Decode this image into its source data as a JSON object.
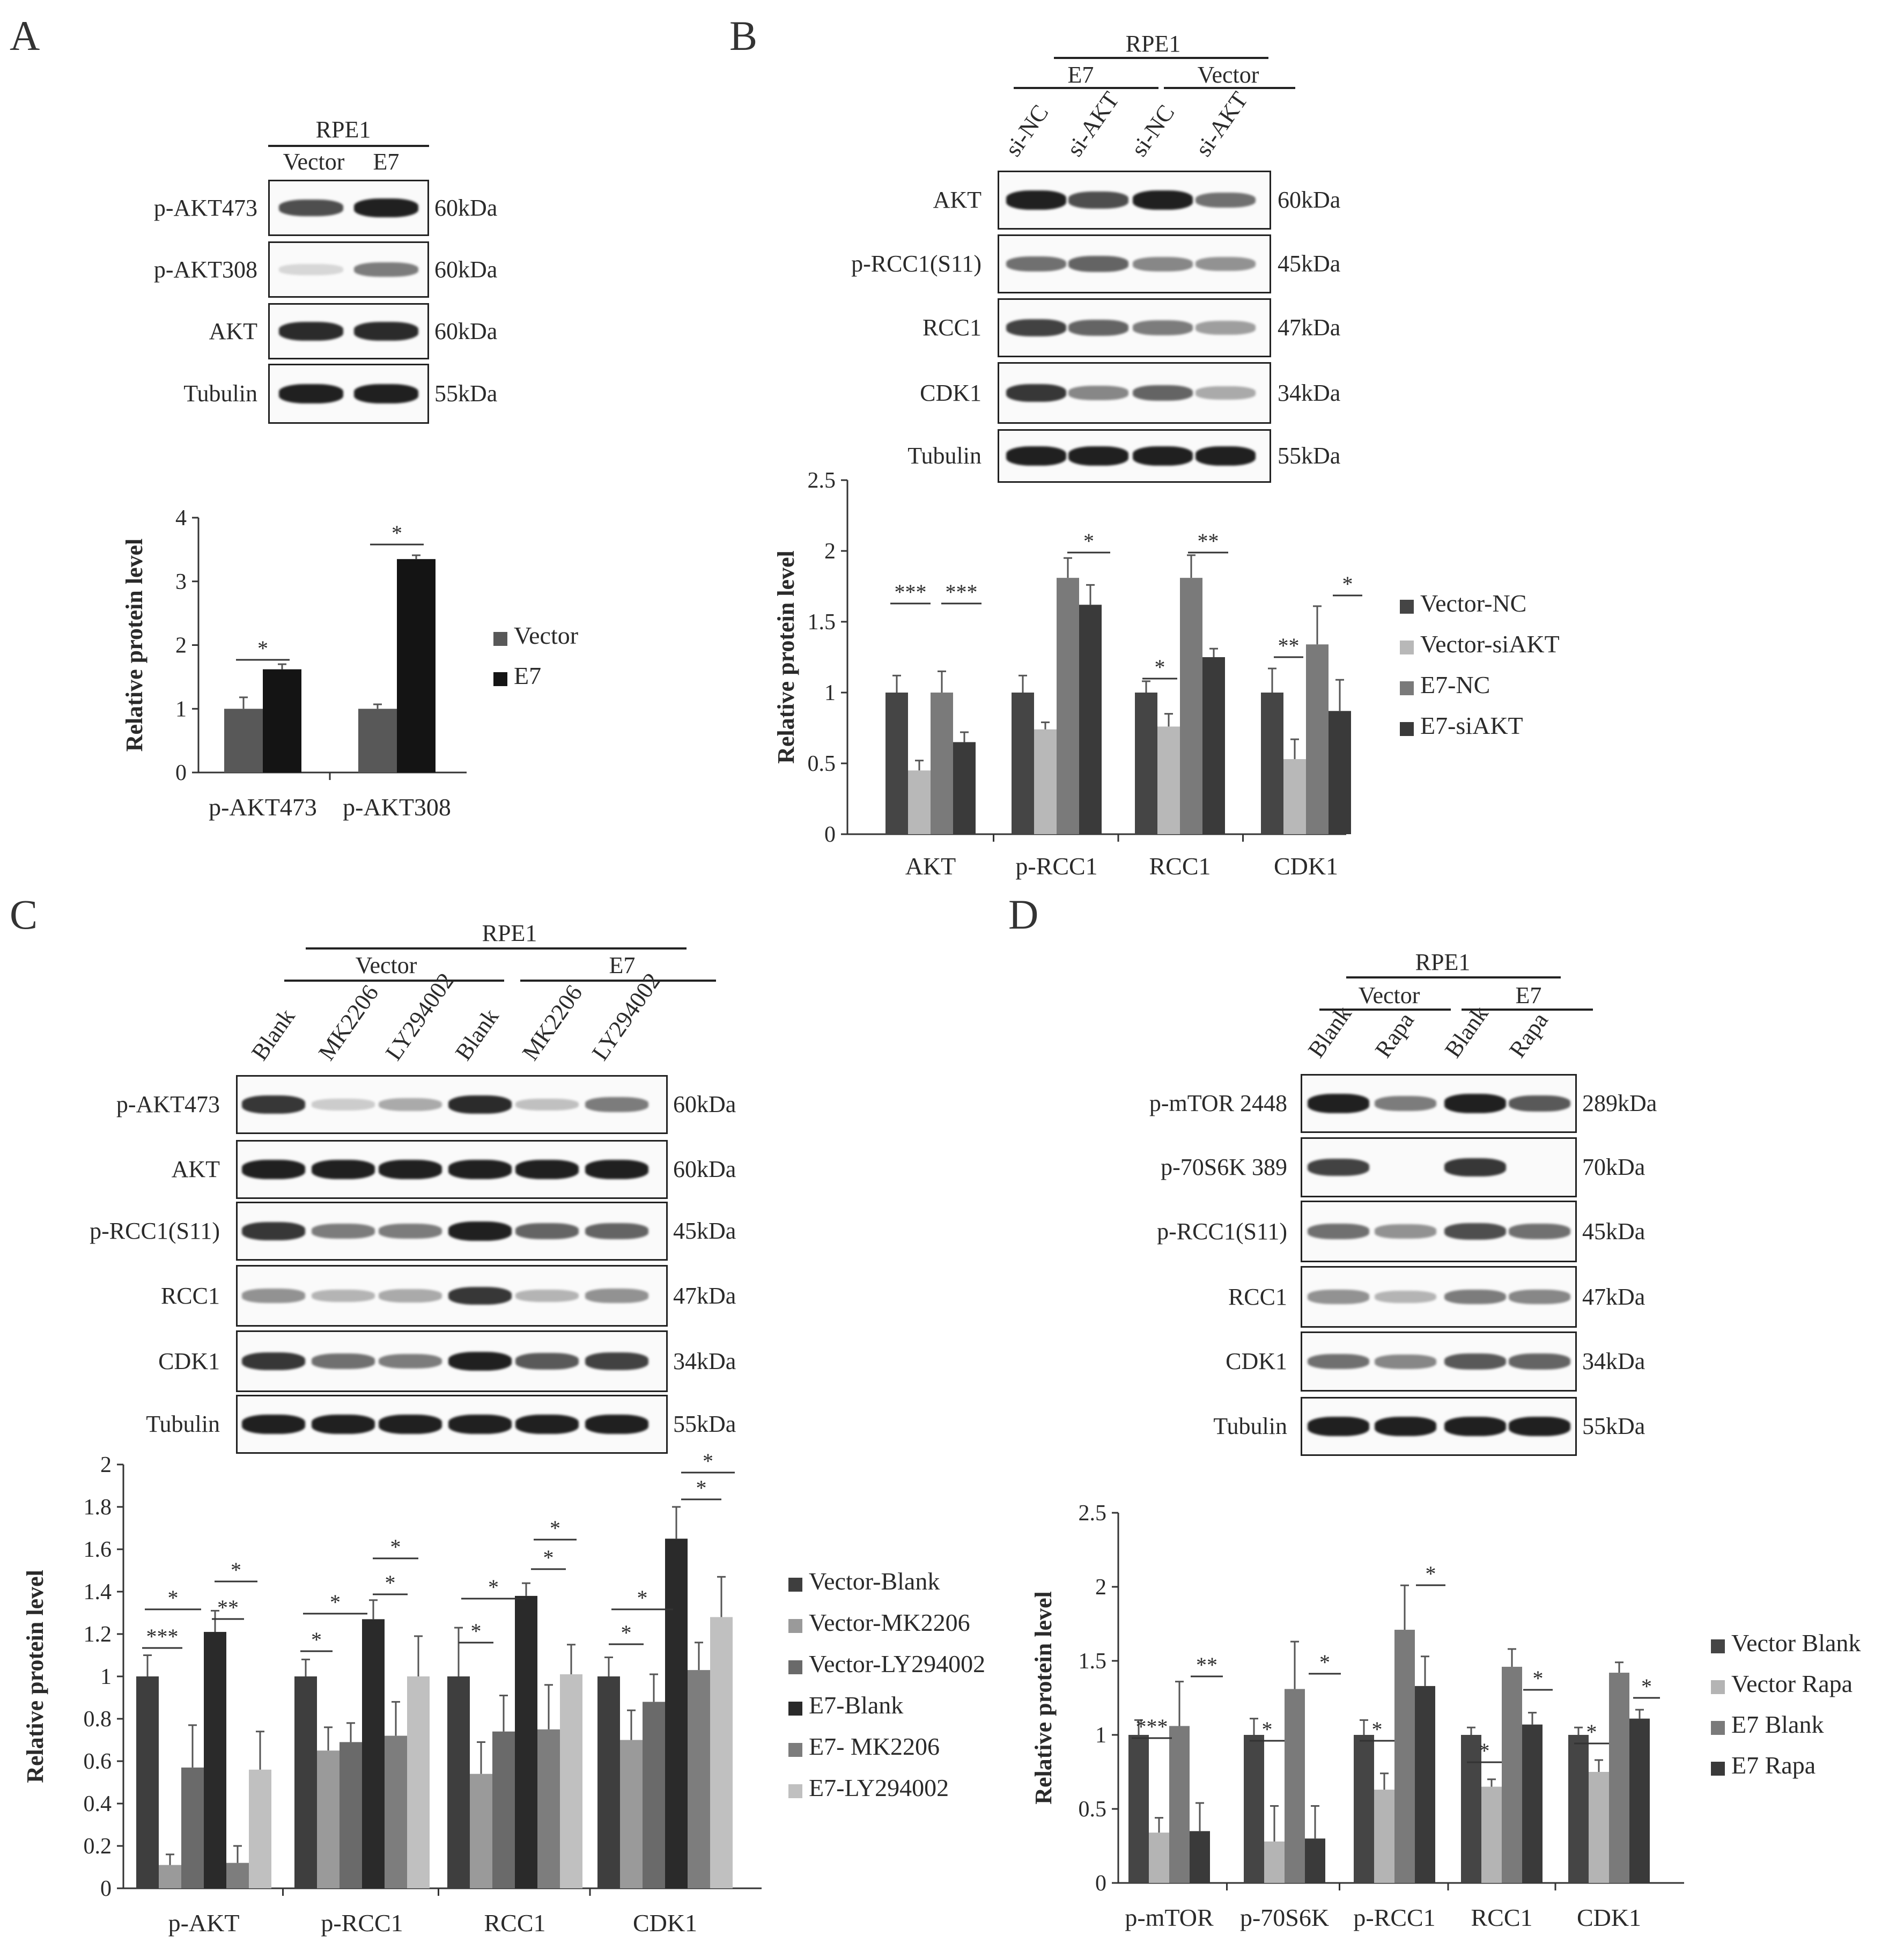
{
  "panels": {
    "A": {
      "letter": "A",
      "cell_line": "RPE1",
      "lanes": [
        "Vector",
        "E7"
      ],
      "blots": [
        {
          "protein": "p-AKT473",
          "size": "60kDa"
        },
        {
          "protein": "p-AKT308",
          "size": "60kDa"
        },
        {
          "protein": "AKT",
          "size": "60kDa"
        },
        {
          "protein": "Tubulin",
          "size": "55kDa"
        }
      ]
    },
    "B": {
      "letter": "B",
      "cell_line": "RPE1",
      "groups": [
        "E7",
        "Vector"
      ],
      "lanes": [
        "si-NC",
        "si-AKT",
        "si-NC",
        "si-AKT"
      ],
      "blots": [
        {
          "protein": "AKT",
          "size": "60kDa"
        },
        {
          "protein": "p-RCC1(S11)",
          "size": "45kDa"
        },
        {
          "protein": "RCC1",
          "size": "47kDa"
        },
        {
          "protein": "CDK1",
          "size": "34kDa"
        },
        {
          "protein": "Tubulin",
          "size": "55kDa"
        }
      ]
    },
    "C": {
      "letter": "C",
      "cell_line": "RPE1",
      "groups": [
        "Vector",
        "E7"
      ],
      "lanes": [
        "Blank",
        "MK2206",
        "LY294002",
        "Blank",
        "MK2206",
        "LY294002"
      ],
      "blots": [
        {
          "protein": "p-AKT473",
          "size": "60kDa"
        },
        {
          "protein": "AKT",
          "size": "60kDa"
        },
        {
          "protein": "p-RCC1(S11)",
          "size": "45kDa"
        },
        {
          "protein": "RCC1",
          "size": "47kDa"
        },
        {
          "protein": "CDK1",
          "size": "34kDa"
        },
        {
          "protein": "Tubulin",
          "size": "55kDa"
        }
      ]
    },
    "D": {
      "letter": "D",
      "cell_line": "RPE1",
      "groups": [
        "Vector",
        "E7"
      ],
      "lanes": [
        "Blank",
        "Rapa",
        "Blank",
        "Rapa"
      ],
      "blots": [
        {
          "protein": "p-mTOR 2448",
          "size": "289kDa"
        },
        {
          "protein": "p-70S6K 389",
          "size": "70kDa"
        },
        {
          "protein": "p-RCC1(S11)",
          "size": "45kDa"
        },
        {
          "protein": "RCC1",
          "size": "47kDa"
        },
        {
          "protein": "CDK1",
          "size": "34kDa"
        },
        {
          "protein": "Tubulin",
          "size": "55kDa"
        }
      ]
    }
  },
  "colors": {
    "dark": "#3c3c3c",
    "light": "#b9b9b9",
    "mid": "#7d7d7d",
    "black": "#1a1a1a",
    "grey2": "#6e6e6e",
    "pale": "#c8c8c8"
  },
  "chart_data": [
    {
      "id": "A",
      "type": "bar",
      "categories": [
        "p-AKT473",
        "p-AKT308"
      ],
      "series": [
        {
          "name": "Vector",
          "color": "#585858",
          "values": [
            1.0,
            1.0
          ],
          "errors": [
            0.18,
            0.07
          ]
        },
        {
          "name": "E7",
          "color": "#141414",
          "values": [
            1.62,
            3.35
          ],
          "errors": [
            0.08,
            0.06
          ]
        }
      ],
      "ylabel": "Relative protein level",
      "ylim": [
        0,
        4
      ],
      "yticks": [
        "0",
        "1",
        "2",
        "3",
        "4"
      ],
      "significance": [
        "*",
        "*"
      ]
    },
    {
      "id": "B",
      "type": "bar",
      "categories": [
        "AKT",
        "p-RCC1",
        "RCC1",
        "CDK1"
      ],
      "series": [
        {
          "name": "Vector-NC",
          "color": "#454545",
          "values": [
            1.0,
            1.0,
            1.0,
            1.0
          ],
          "errors": [
            0.12,
            0.12,
            0.08,
            0.17
          ]
        },
        {
          "name": "Vector-siAKT",
          "color": "#b8b8b8",
          "values": [
            0.45,
            0.74,
            0.76,
            0.53
          ],
          "errors": [
            0.07,
            0.05,
            0.09,
            0.14
          ]
        },
        {
          "name": "E7-NC",
          "color": "#7a7a7a",
          "values": [
            1.0,
            1.81,
            1.81,
            1.34
          ],
          "errors": [
            0.15,
            0.14,
            0.16,
            0.27
          ]
        },
        {
          "name": "E7-siAKT",
          "color": "#3a3a3a",
          "values": [
            0.65,
            1.62,
            1.25,
            0.87
          ],
          "errors": [
            0.07,
            0.14,
            0.06,
            0.22
          ]
        }
      ],
      "ylabel": "Relative protein level",
      "ylim": [
        0,
        2.5
      ],
      "yticks": [
        "0",
        "0.5",
        "1",
        "1.5",
        "2",
        "2.5"
      ],
      "significance": [
        "***",
        "***",
        "*",
        "*",
        "**",
        "**",
        "*"
      ]
    },
    {
      "id": "C",
      "type": "bar",
      "categories": [
        "p-AKT",
        "p-RCC1",
        "RCC1",
        "CDK1"
      ],
      "series": [
        {
          "name": "Vector-Blank",
          "color": "#3e3e3e",
          "values": [
            1.0,
            1.0,
            1.0,
            1.0
          ],
          "errors": [
            0.1,
            0.08,
            0.23,
            0.09
          ]
        },
        {
          "name": "Vector-MK2206",
          "color": "#9a9a9a",
          "values": [
            0.11,
            0.65,
            0.54,
            0.7
          ],
          "errors": [
            0.05,
            0.11,
            0.15,
            0.14
          ]
        },
        {
          "name": "Vector-LY294002",
          "color": "#6a6a6a",
          "values": [
            0.57,
            0.69,
            0.74,
            0.88
          ],
          "errors": [
            0.2,
            0.09,
            0.17,
            0.13
          ]
        },
        {
          "name": "E7-Blank",
          "color": "#2a2a2a",
          "values": [
            1.21,
            1.27,
            1.38,
            1.65
          ],
          "errors": [
            0.1,
            0.09,
            0.06,
            0.15
          ]
        },
        {
          "name": "E7- MK2206",
          "color": "#7d7d7d",
          "values": [
            0.12,
            0.72,
            0.75,
            1.03
          ],
          "errors": [
            0.08,
            0.16,
            0.21,
            0.13
          ]
        },
        {
          "name": "E7-LY294002",
          "color": "#c0c0c0",
          "values": [
            0.56,
            1.0,
            1.01,
            1.28
          ],
          "errors": [
            0.18,
            0.19,
            0.14,
            0.19
          ]
        }
      ],
      "ylabel": "Relative protein level",
      "ylim": [
        0,
        2
      ],
      "yticks": [
        "0",
        "0.2",
        "0.4",
        "0.6",
        "0.8",
        "1",
        "1.2",
        "1.4",
        "1.6",
        "1.8",
        "2"
      ],
      "significance": [
        "***",
        "*",
        "**",
        "*",
        "*",
        "*",
        "*",
        "*",
        "*",
        "*",
        "*",
        "*",
        "*",
        "*",
        "*",
        "*"
      ]
    },
    {
      "id": "D",
      "type": "bar",
      "categories": [
        "p-mTOR",
        "p-70S6K",
        "p-RCC1",
        "RCC1",
        "CDK1"
      ],
      "series": [
        {
          "name": "Vector Blank",
          "color": "#454545",
          "values": [
            1.0,
            1.0,
            1.0,
            1.0,
            1.0
          ],
          "errors": [
            0.1,
            0.11,
            0.1,
            0.05,
            0.05
          ]
        },
        {
          "name": "Vector Rapa",
          "color": "#b4b4b4",
          "values": [
            0.34,
            0.28,
            0.63,
            0.65,
            0.75
          ],
          "errors": [
            0.1,
            0.24,
            0.11,
            0.05,
            0.08
          ]
        },
        {
          "name": "E7 Blank",
          "color": "#7a7a7a",
          "values": [
            1.06,
            1.31,
            1.71,
            1.46,
            1.42
          ],
          "errors": [
            0.3,
            0.32,
            0.3,
            0.12,
            0.07
          ]
        },
        {
          "name": "E7 Rapa",
          "color": "#3a3a3a",
          "values": [
            0.35,
            0.3,
            1.33,
            1.07,
            1.11
          ],
          "errors": [
            0.19,
            0.22,
            0.2,
            0.08,
            0.06
          ]
        }
      ],
      "ylabel": "Relative protein level",
      "ylim": [
        0,
        2.5
      ],
      "yticks": [
        "0",
        "0.5",
        "1",
        "1.5",
        "2",
        "2.5"
      ],
      "significance": [
        "***",
        "**",
        "*",
        "*",
        "*",
        "*",
        "*",
        "*",
        "*",
        "*"
      ]
    }
  ]
}
